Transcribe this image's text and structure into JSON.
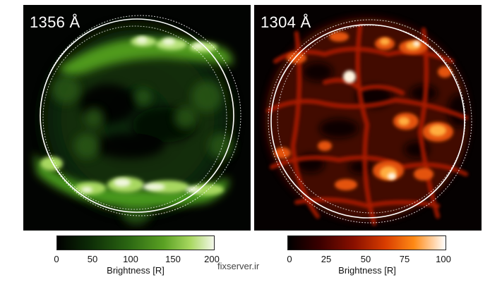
{
  "panels": {
    "left": {
      "label": "1356 Å",
      "colorbar": {
        "ticks": [
          "0",
          "50",
          "100",
          "150",
          "200"
        ],
        "label": "Brightness [R]",
        "colors": [
          "#000000",
          "#2a6512",
          "#5aa123",
          "#f4f8ea"
        ]
      }
    },
    "right": {
      "label": "1304 Å",
      "colorbar": {
        "ticks": [
          "0",
          "25",
          "50",
          "75",
          "100"
        ],
        "label": "Brightness [R]",
        "colors": [
          "#000000",
          "#8a1000",
          "#ff8a15",
          "#ffffff"
        ]
      }
    }
  },
  "watermark": "fixserver.ir"
}
